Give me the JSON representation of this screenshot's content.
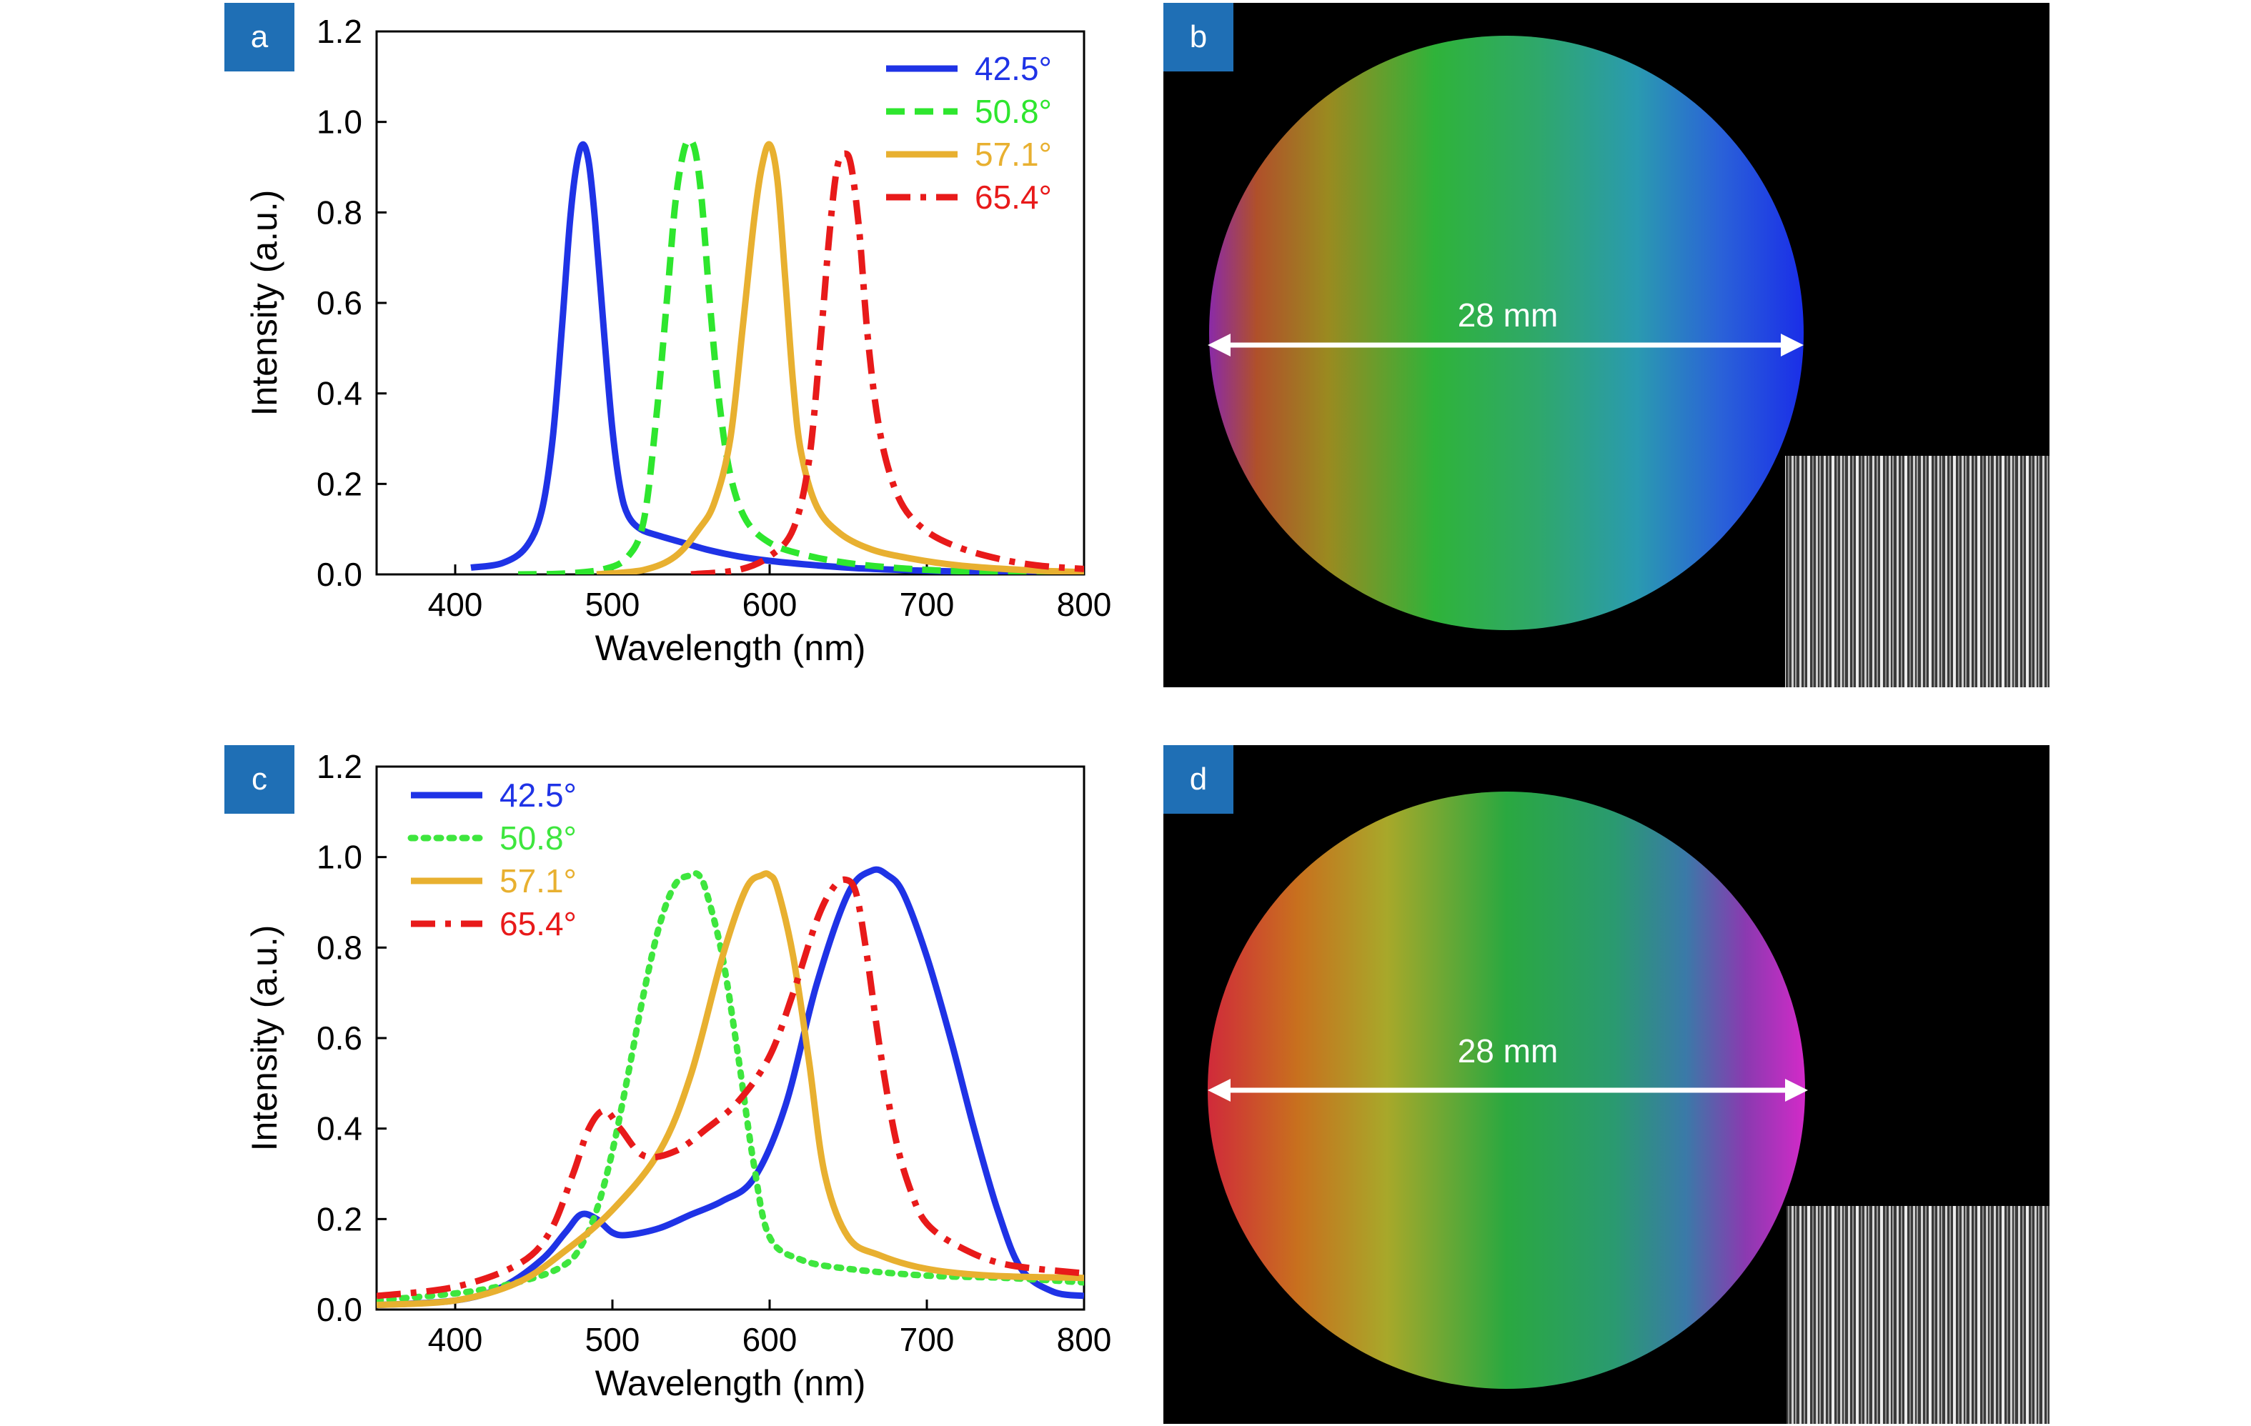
{
  "chart_data": [
    {
      "panel": "a",
      "type": "line",
      "xlabel": "Wavelength (nm)",
      "ylabel": "Intensity (a.u.)",
      "xlim": [
        350,
        800
      ],
      "ylim": [
        0,
        1.2
      ],
      "xticks": [
        400,
        500,
        600,
        700,
        800
      ],
      "yticks": [
        0.0,
        0.2,
        0.4,
        0.6,
        0.8,
        1.0,
        1.2
      ],
      "ytick_labels": [
        "0.0",
        "0.2",
        "0.4",
        "0.6",
        "0.8",
        "1.0",
        "1.2"
      ],
      "legend": "top-right",
      "series": [
        {
          "name": "42.5°",
          "color": "#1f33e6",
          "style": "solid",
          "x": [
            410,
            430,
            445,
            455,
            462,
            468,
            473,
            477,
            481,
            485,
            489,
            495,
            500,
            505,
            510,
            518,
            530,
            545,
            560,
            580,
            600,
            630,
            660,
            700,
            750,
            800
          ],
          "y": [
            0.015,
            0.025,
            0.06,
            0.14,
            0.3,
            0.55,
            0.78,
            0.9,
            0.95,
            0.91,
            0.78,
            0.52,
            0.32,
            0.19,
            0.13,
            0.1,
            0.085,
            0.07,
            0.055,
            0.04,
            0.03,
            0.02,
            0.013,
            0.008,
            0.004,
            0.002
          ]
        },
        {
          "name": "50.8°",
          "color": "#2ee62e",
          "style": "dashed",
          "x": [
            440,
            470,
            495,
            510,
            520,
            528,
            535,
            540,
            545,
            549,
            553,
            557,
            562,
            568,
            575,
            585,
            600,
            620,
            650,
            690,
            740,
            800
          ],
          "y": [
            0.0,
            0.002,
            0.012,
            0.04,
            0.12,
            0.35,
            0.62,
            0.82,
            0.93,
            0.96,
            0.93,
            0.82,
            0.6,
            0.38,
            0.22,
            0.12,
            0.07,
            0.045,
            0.025,
            0.012,
            0.005,
            0.002
          ]
        },
        {
          "name": "57.1°",
          "color": "#e8b030",
          "style": "solid",
          "x": [
            490,
            520,
            540,
            555,
            565,
            575,
            583,
            590,
            595,
            600,
            605,
            610,
            615,
            620,
            630,
            645,
            665,
            690,
            720,
            760,
            800
          ],
          "y": [
            0.0,
            0.01,
            0.04,
            0.1,
            0.16,
            0.3,
            0.55,
            0.78,
            0.9,
            0.95,
            0.87,
            0.65,
            0.42,
            0.27,
            0.15,
            0.09,
            0.055,
            0.035,
            0.02,
            0.01,
            0.005
          ]
        },
        {
          "name": "65.4°",
          "color": "#e81a1a",
          "style": "dashdot",
          "x": [
            550,
            580,
            600,
            615,
            625,
            632,
            638,
            643,
            648,
            652,
            657,
            662,
            668,
            675,
            685,
            700,
            720,
            745,
            770,
            800
          ],
          "y": [
            0.0,
            0.01,
            0.04,
            0.1,
            0.25,
            0.5,
            0.75,
            0.9,
            0.93,
            0.9,
            0.76,
            0.54,
            0.36,
            0.24,
            0.15,
            0.095,
            0.06,
            0.035,
            0.02,
            0.012
          ]
        }
      ]
    },
    {
      "panel": "c",
      "type": "line",
      "xlabel": "Wavelength (nm)",
      "ylabel": "Intensity (a.u.)",
      "xlim": [
        350,
        800
      ],
      "ylim": [
        0,
        1.2
      ],
      "xticks": [
        400,
        500,
        600,
        700,
        800
      ],
      "yticks": [
        0.0,
        0.2,
        0.4,
        0.6,
        0.8,
        1.0,
        1.2
      ],
      "ytick_labels": [
        "0.0",
        "0.2",
        "0.4",
        "0.6",
        "0.8",
        "1.0",
        "1.2"
      ],
      "legend": "top-left",
      "series": [
        {
          "name": "42.5°",
          "color": "#1f33e6",
          "style": "solid",
          "x": [
            350,
            400,
            430,
            455,
            470,
            480,
            490,
            500,
            510,
            530,
            550,
            570,
            590,
            610,
            630,
            650,
            665,
            675,
            685,
            700,
            715,
            730,
            745,
            760,
            780,
            800
          ],
          "y": [
            0.01,
            0.02,
            0.05,
            0.11,
            0.17,
            0.21,
            0.2,
            0.17,
            0.165,
            0.18,
            0.21,
            0.24,
            0.29,
            0.45,
            0.72,
            0.92,
            0.97,
            0.96,
            0.92,
            0.78,
            0.6,
            0.4,
            0.22,
            0.09,
            0.04,
            0.03
          ]
        },
        {
          "name": "50.8°",
          "color": "#3ee63e",
          "style": "dotted",
          "x": [
            350,
            410,
            450,
            470,
            480,
            490,
            500,
            510,
            520,
            530,
            540,
            550,
            555,
            560,
            570,
            580,
            590,
            600,
            620,
            650,
            700,
            750,
            800
          ],
          "y": [
            0.02,
            0.04,
            0.07,
            0.1,
            0.14,
            0.22,
            0.35,
            0.52,
            0.7,
            0.85,
            0.94,
            0.96,
            0.96,
            0.92,
            0.78,
            0.56,
            0.32,
            0.16,
            0.11,
            0.09,
            0.075,
            0.07,
            0.06
          ]
        },
        {
          "name": "57.1°",
          "color": "#e8b030",
          "style": "solid",
          "x": [
            350,
            400,
            440,
            470,
            500,
            530,
            550,
            570,
            585,
            595,
            600,
            605,
            615,
            625,
            635,
            650,
            670,
            700,
            740,
            800
          ],
          "y": [
            0.01,
            0.02,
            0.06,
            0.13,
            0.22,
            0.35,
            0.52,
            0.78,
            0.93,
            0.96,
            0.96,
            0.93,
            0.78,
            0.55,
            0.3,
            0.16,
            0.12,
            0.09,
            0.075,
            0.07
          ]
        },
        {
          "name": "65.4°",
          "color": "#e81a1a",
          "style": "dashdot",
          "x": [
            350,
            400,
            440,
            460,
            475,
            485,
            495,
            505,
            520,
            540,
            560,
            580,
            600,
            615,
            630,
            640,
            648,
            655,
            662,
            670,
            680,
            690,
            700,
            720,
            750,
            800
          ],
          "y": [
            0.03,
            0.05,
            0.1,
            0.17,
            0.3,
            0.4,
            0.44,
            0.4,
            0.34,
            0.35,
            0.4,
            0.46,
            0.56,
            0.7,
            0.86,
            0.93,
            0.95,
            0.92,
            0.78,
            0.58,
            0.38,
            0.26,
            0.19,
            0.14,
            0.1,
            0.08
          ]
        }
      ]
    }
  ],
  "images": [
    {
      "panel": "b",
      "scale_label": "28 mm"
    },
    {
      "panel": "d",
      "scale_label": "28 mm"
    }
  ],
  "panel_letters": {
    "a": "a",
    "b": "b",
    "c": "c",
    "d": "d"
  },
  "colors": {
    "panel_badge": "#1f6fb5",
    "image_background": "#000000"
  }
}
